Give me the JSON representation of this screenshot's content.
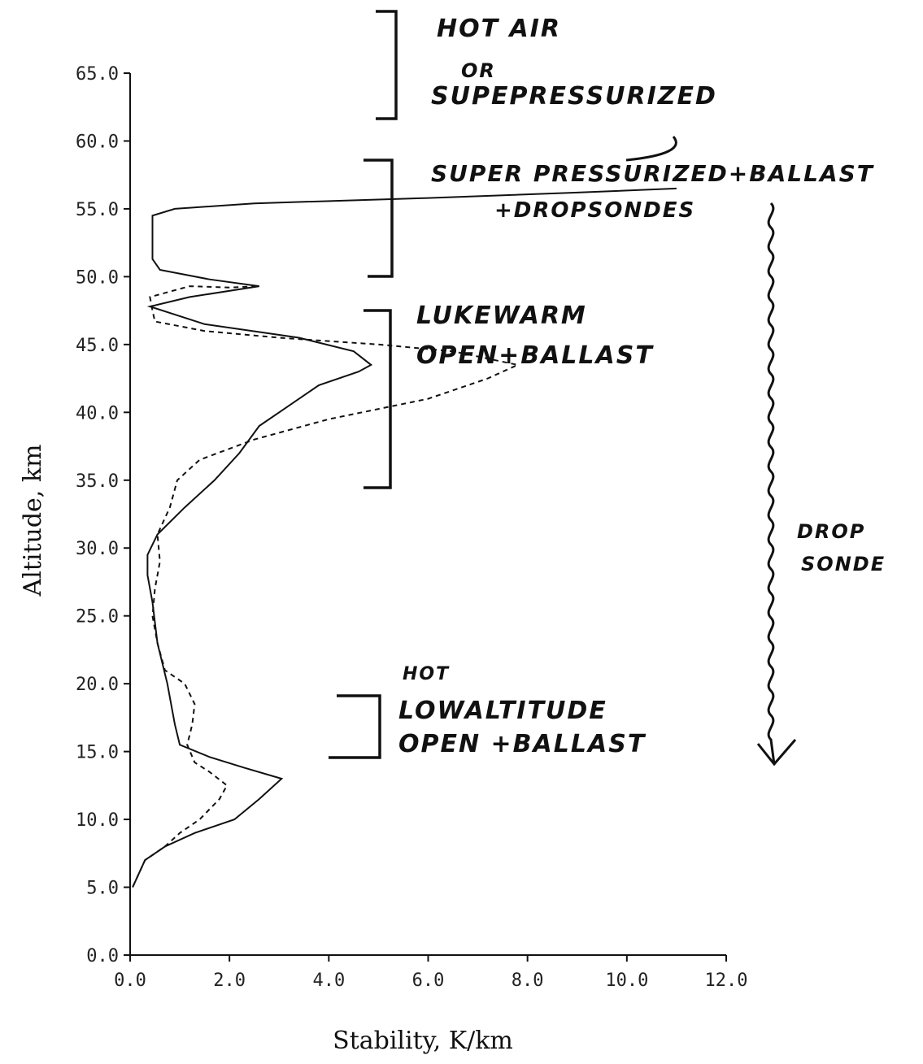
{
  "chart_data": {
    "type": "line",
    "xlabel": "Stability, K/km",
    "ylabel": "Altitude, km",
    "xlim": [
      0,
      12
    ],
    "ylim": [
      0,
      65
    ],
    "x_ticks": [
      "0.0",
      "2.0",
      "4.0",
      "6.0",
      "8.0",
      "10.0",
      "12.0"
    ],
    "y_ticks": [
      "0.0",
      "5.0",
      "10.0",
      "15.0",
      "20.0",
      "25.0",
      "30.0",
      "35.0",
      "40.0",
      "45.0",
      "50.0",
      "55.0",
      "60.0",
      "65.0"
    ],
    "series": [
      {
        "style": "solid",
        "points": [
          [
            0.05,
            5
          ],
          [
            0.3,
            7
          ],
          [
            0.7,
            8
          ],
          [
            1.3,
            9
          ],
          [
            2.1,
            10
          ],
          [
            2.6,
            11.5
          ],
          [
            3.05,
            13
          ],
          [
            2.3,
            13.8
          ],
          [
            1.6,
            14.6
          ],
          [
            1.0,
            15.5
          ],
          [
            0.9,
            17
          ],
          [
            0.75,
            20
          ],
          [
            0.55,
            23
          ],
          [
            0.45,
            26
          ],
          [
            0.35,
            28
          ],
          [
            0.35,
            29.5
          ],
          [
            0.55,
            31
          ],
          [
            1.1,
            33
          ],
          [
            1.7,
            35
          ],
          [
            2.2,
            37
          ],
          [
            2.6,
            39
          ],
          [
            3.0,
            40
          ],
          [
            3.8,
            42
          ],
          [
            4.6,
            43
          ],
          [
            4.85,
            43.5
          ],
          [
            4.5,
            44.5
          ],
          [
            3.4,
            45.5
          ],
          [
            1.5,
            46.5
          ],
          [
            0.4,
            47.8
          ],
          [
            1.2,
            48.5
          ],
          [
            2.6,
            49.3
          ],
          [
            1.6,
            49.8
          ],
          [
            0.6,
            50.5
          ],
          [
            0.45,
            51.3
          ],
          [
            0.45,
            53
          ],
          [
            0.45,
            54.5
          ],
          [
            0.9,
            55
          ],
          [
            2.5,
            55.4
          ],
          [
            6.0,
            55.8
          ],
          [
            9.0,
            56.2
          ],
          [
            11.0,
            56.5
          ]
        ]
      },
      {
        "style": "dashed",
        "points": [
          [
            0.05,
            5
          ],
          [
            0.3,
            7
          ],
          [
            0.7,
            8
          ],
          [
            1.0,
            9
          ],
          [
            1.4,
            10
          ],
          [
            1.8,
            11.5
          ],
          [
            1.95,
            12.5
          ],
          [
            1.6,
            13.5
          ],
          [
            1.3,
            14.2
          ],
          [
            1.15,
            15.5
          ],
          [
            1.25,
            17
          ],
          [
            1.3,
            18.5
          ],
          [
            1.1,
            20
          ],
          [
            0.7,
            21
          ],
          [
            0.55,
            23
          ],
          [
            0.45,
            25
          ],
          [
            0.5,
            27
          ],
          [
            0.6,
            29
          ],
          [
            0.55,
            31
          ],
          [
            0.8,
            33
          ],
          [
            0.95,
            35
          ],
          [
            1.4,
            36.5
          ],
          [
            2.5,
            38
          ],
          [
            4.0,
            39.5
          ],
          [
            6.0,
            41
          ],
          [
            7.2,
            42.5
          ],
          [
            7.8,
            43.5
          ],
          [
            6.5,
            44.5
          ],
          [
            5.0,
            45
          ],
          [
            3.0,
            45.5
          ],
          [
            1.5,
            46
          ],
          [
            0.5,
            46.7
          ],
          [
            0.45,
            47.5
          ],
          [
            0.4,
            48.5
          ],
          [
            1.2,
            49.3
          ],
          [
            2.0,
            49.2
          ],
          [
            2.6,
            49.3
          ]
        ]
      }
    ],
    "annotations": {
      "hot_air_line1": "HOT AIR",
      "hot_air_line2": "OR",
      "hot_air_line3": "SUPEPRESSURIZED",
      "superpressurized_line1": "SUPER PRESSURIZED+BALLAST",
      "superpressurized_line2": "+DROPSONDES",
      "lukewarm_line1": "LUKEWARM",
      "lukewarm_line2": "OPEN+BALLAST",
      "hot_low_line1": "HOT",
      "hot_low_line2": "LOWALTITUDE",
      "hot_low_line3": "OPEN +BALLAST",
      "drop_sonde_line1": "DROP",
      "drop_sonde_line2": "SONDE"
    }
  }
}
